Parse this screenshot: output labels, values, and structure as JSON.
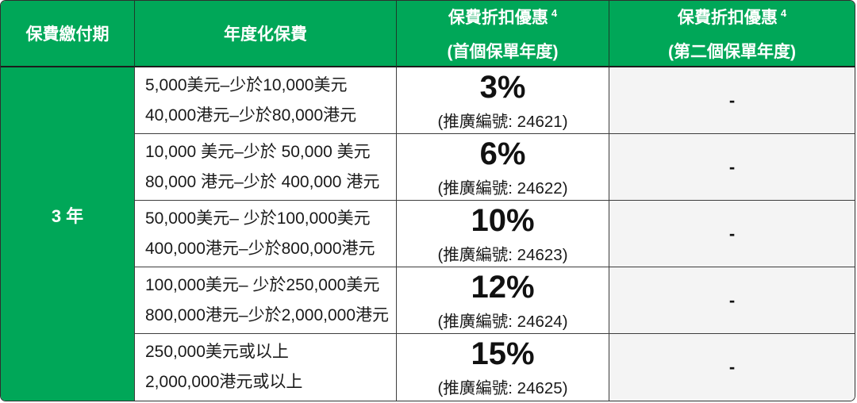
{
  "table": {
    "colors": {
      "brand_green": "#00A758",
      "alt_column_bg": "#f4f4f4",
      "border_dark": "#3d3d3d"
    },
    "headers": {
      "payment_term": "保費繳付期",
      "annualized_premium": "年度化保費",
      "discount_first": {
        "title": "保費折扣優惠",
        "footnote": "4",
        "subtitle": "(首個保單年度)"
      },
      "discount_second": {
        "title": "保費折扣優惠",
        "footnote": "4",
        "subtitle": "(第二個保單年度)"
      }
    },
    "payment_term_value": "3 年",
    "rows": [
      {
        "tier_usd": "5,000美元–少於10,000美元",
        "tier_hkd": "40,000港元–少於80,000港元",
        "discount": "3%",
        "promo": "(推廣編號: 24621)",
        "second_year": "-"
      },
      {
        "tier_usd": "10,000 美元–少於 50,000 美元",
        "tier_hkd": "80,000 港元–少於 400,000 港元",
        "discount": "6%",
        "promo": "(推廣編號: 24622)",
        "second_year": "-"
      },
      {
        "tier_usd": "50,000美元– 少於100,000美元",
        "tier_hkd": "400,000港元–少於800,000港元",
        "discount": "10%",
        "promo": "(推廣編號: 24623)",
        "second_year": "-"
      },
      {
        "tier_usd": "100,000美元– 少於250,000美元",
        "tier_hkd": "800,000港元–少於2,000,000港元",
        "discount": "12%",
        "promo": "(推廣編號: 24624)",
        "second_year": "-"
      },
      {
        "tier_usd": "250,000美元或以上",
        "tier_hkd": "2,000,000港元或以上",
        "discount": "15%",
        "promo": "(推廣編號: 24625)",
        "second_year": "-"
      }
    ]
  }
}
